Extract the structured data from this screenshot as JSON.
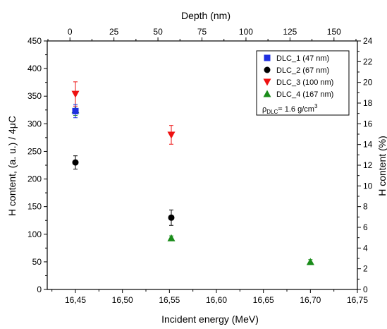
{
  "chart_data": {
    "type": "scatter",
    "title": "",
    "xlabel": "Incident energy (MeV)",
    "ylabel": "H content, (a. u.) / 4μC",
    "x2label": "Depth (nm)",
    "y2label": "H content (%)",
    "xlim": [
      16.42,
      16.75
    ],
    "ylim": [
      0,
      450
    ],
    "x2lim": [
      -12.9,
      163.3
    ],
    "y2lim": [
      0,
      24
    ],
    "x_ticks": [
      16.45,
      16.5,
      16.55,
      16.6,
      16.65,
      16.7,
      16.75
    ],
    "x_tick_labels": [
      "16,45",
      "16,50",
      "16,55",
      "16,60",
      "16,65",
      "16,70",
      "16,75"
    ],
    "y_ticks": [
      0,
      50,
      100,
      150,
      200,
      250,
      300,
      350,
      400,
      450
    ],
    "y_tick_labels": [
      "0",
      "50",
      "100",
      "150",
      "200",
      "250",
      "300",
      "350",
      "400",
      "450"
    ],
    "x2_ticks": [
      0,
      25,
      50,
      75,
      100,
      125,
      150
    ],
    "x2_tick_labels": [
      "0",
      "25",
      "50",
      "75",
      "100",
      "125",
      "150"
    ],
    "y2_ticks": [
      0,
      2,
      4,
      6,
      8,
      10,
      12,
      14,
      16,
      18,
      20,
      22,
      24
    ],
    "y2_tick_labels": [
      "0",
      "2",
      "4",
      "6",
      "8",
      "10",
      "12",
      "14",
      "16",
      "18",
      "20",
      "22",
      "24"
    ],
    "grid": false,
    "legend_position": "top-right",
    "series": [
      {
        "name": "DLC_1 (47 nm)",
        "marker": "square",
        "color": "#1f2fe0",
        "points": [
          {
            "x": 16.45,
            "y": 323,
            "err": 12
          }
        ]
      },
      {
        "name": "DLC_2 (67 nm)",
        "marker": "circle",
        "color": "#000000",
        "points": [
          {
            "x": 16.45,
            "y": 230,
            "err": 12
          },
          {
            "x": 16.552,
            "y": 130,
            "err": 14
          }
        ]
      },
      {
        "name": "DLC_3 (100 nm)",
        "marker": "triangle-down",
        "color": "#ee1111",
        "points": [
          {
            "x": 16.45,
            "y": 354,
            "err": 22
          },
          {
            "x": 16.552,
            "y": 280,
            "err": 17
          }
        ]
      },
      {
        "name": "DLC_4 (167 nm)",
        "marker": "triangle-up",
        "color": "#1a8c1a",
        "points": [
          {
            "x": 16.45,
            "y": 325,
            "err": 10
          },
          {
            "x": 16.552,
            "y": 93,
            "err": 4
          },
          {
            "x": 16.7,
            "y": 50,
            "err": 4
          }
        ]
      }
    ],
    "annotation": {
      "rho": "ρ",
      "sub": "DLC",
      "mid": "= 1.6 g/cm",
      "sup": "3"
    }
  }
}
